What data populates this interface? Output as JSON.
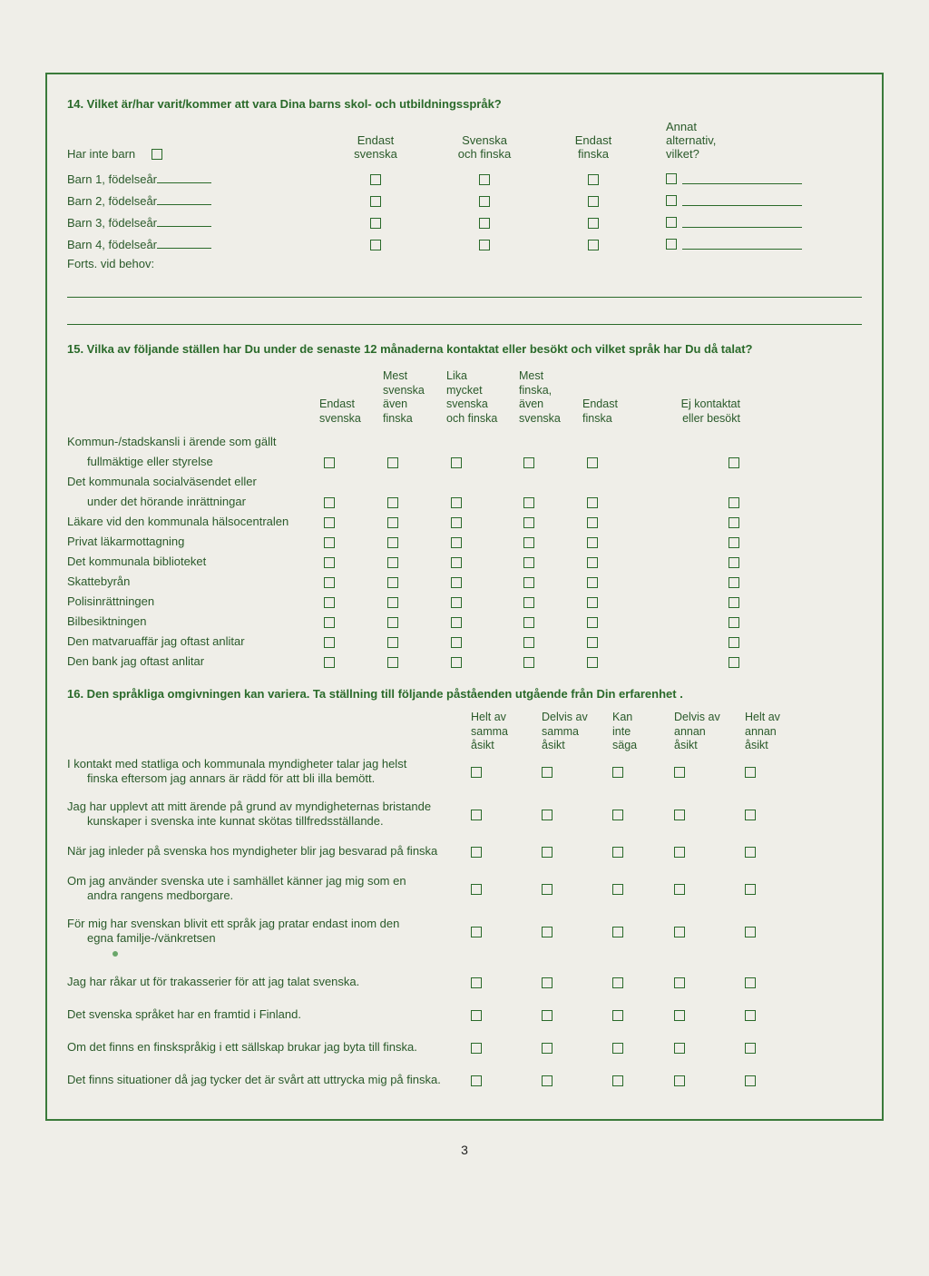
{
  "colors": {
    "text": "#2a5a2a",
    "border": "#3a7a3a",
    "bg": "#efeee8"
  },
  "q14": {
    "title": "14. Vilket är/har varit/kommer att vara Dina barns skol- och utbildningsspråk?",
    "noChildren": "Har inte barn",
    "headers": {
      "c1": "Endast\nsvenska",
      "c2": "Svenska\noch finska",
      "c3": "Endast\nfinska",
      "c4": "Annat\nalternativ,\nvilket?"
    },
    "rows": [
      "Barn 1, födelseår",
      "Barn 2, födelseår",
      "Barn 3, födelseår",
      "Barn 4, födelseår"
    ],
    "cont": "Forts. vid behov:"
  },
  "q15": {
    "title": "15. Vilka av följande ställen har Du under de senaste 12 månaderna kontaktat eller besökt och vilket språk har Du då talat?",
    "headers": {
      "c1": "Endast\nsvenska",
      "c2": "Mest\nsvenska\näven\nfinska",
      "c3": "Lika\nmycket\nsvenska\noch finska",
      "c4": "Mest\nfinska,\näven\nsvenska",
      "c5": "Endast\nfinska",
      "c6": "Ej kontaktat\neller besökt"
    },
    "rows": [
      {
        "l1": "Kommun-/stadskansli i ärende som gällt",
        "l2": "fullmäktige eller styrelse"
      },
      {
        "l1": "Det kommunala socialväsendet eller",
        "l2": "under det hörande inrättningar"
      },
      {
        "l1": "Läkare vid den kommunala hälsocentralen"
      },
      {
        "l1": "Privat läkarmottagning"
      },
      {
        "l1": "Det kommunala biblioteket"
      },
      {
        "l1": "Skattebyrån"
      },
      {
        "l1": "Polisinrättningen"
      },
      {
        "l1": "Bilbesiktningen"
      },
      {
        "l1": "Den matvaruaffär jag oftast anlitar"
      },
      {
        "l1": "Den bank jag oftast anlitar"
      }
    ]
  },
  "q16": {
    "title": "16. Den språkliga omgivningen kan variera. Ta ställning till följande påståenden utgående från Din erfarenhet .",
    "headers": {
      "c1": "Helt av\nsamma\nåsikt",
      "c2": "Delvis av\nsamma\nåsikt",
      "c3": "Kan\ninte\nsäga",
      "c4": "Delvis av\nannan\nåsikt",
      "c5": "Helt av\nannan\nåsikt"
    },
    "rows": [
      {
        "l1": "I kontakt med statliga och kommunala myndigheter talar jag helst",
        "l2": "finska eftersom jag annars är rädd för att bli illa bemött."
      },
      {
        "l1": "Jag har upplevt att mitt ärende på grund av myndigheternas bristande",
        "l2": "kunskaper i svenska inte kunnat skötas tillfredsställande."
      },
      {
        "l1": "När jag inleder på svenska hos myndigheter blir jag besvarad på finska"
      },
      {
        "l1": "Om jag använder svenska ute i samhället känner jag mig som en",
        "l2": "andra rangens medborgare."
      },
      {
        "l1": "För mig har svenskan blivit ett språk jag pratar endast inom den",
        "l2": "egna familje-/vänkretsen"
      },
      {
        "l1": "Jag har råkar ut för trakasserier för att jag talat svenska."
      },
      {
        "l1": "Det svenska språket har en framtid i Finland."
      },
      {
        "l1": "Om det finns en finskspråkig i ett sällskap brukar jag byta till finska."
      },
      {
        "l1": "Det finns situationer då jag tycker det är svårt att uttrycka mig på finska."
      }
    ]
  },
  "pageNumber": "3"
}
